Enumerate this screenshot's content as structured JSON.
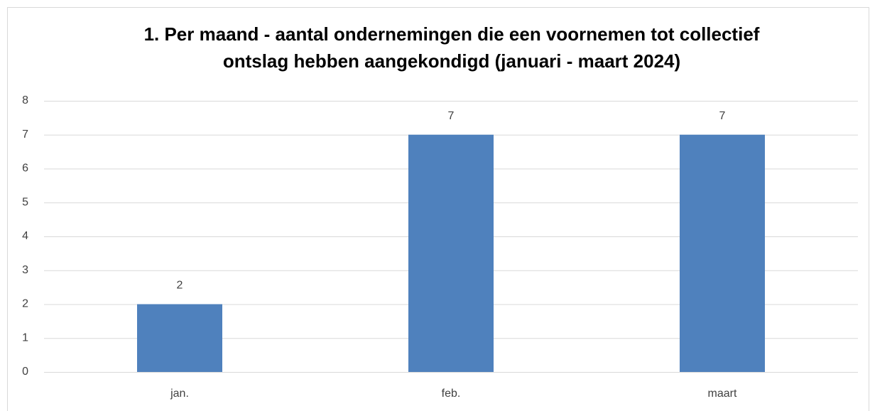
{
  "chart_data": {
    "type": "bar",
    "title": [
      "1. Per maand - aantal ondernemingen die een voornemen tot collectief",
      "ontslag hebben aangekondigd (januari - maart 2024)"
    ],
    "categories": [
      "jan.",
      "feb.",
      "maart"
    ],
    "values": [
      2,
      7,
      7
    ],
    "color": "#4f81bd",
    "ylim": [
      0,
      8
    ],
    "yticks": [
      0,
      1,
      2,
      3,
      4,
      5,
      6,
      7,
      8
    ],
    "grid": true
  }
}
